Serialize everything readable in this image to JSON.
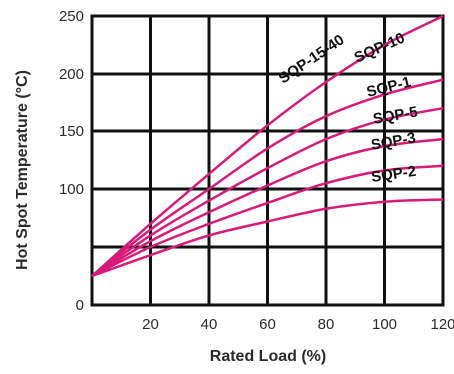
{
  "chart_data": {
    "type": "line",
    "xlabel": "Rated Load (%)",
    "ylabel": "Hot Spot Temperature (°C)",
    "x_ticks": [
      "20",
      "40",
      "60",
      "80",
      "100",
      "120"
    ],
    "y_ticks": [
      {
        "label": "0",
        "value": 0
      },
      {
        "label": "100",
        "value": 100
      },
      {
        "label": "150",
        "value": 150
      },
      {
        "label": "200",
        "value": 200
      },
      {
        "label": "250",
        "value": 250
      }
    ],
    "xlim": [
      0,
      120
    ],
    "ylim": [
      0,
      250
    ],
    "grid": true,
    "line_color": "#d81b7a",
    "series": [
      {
        "name": "SQP-15-40",
        "x": [
          0,
          20,
          40,
          60,
          80,
          100,
          120
        ],
        "y": [
          25,
          70,
          113,
          155,
          193,
          225,
          250
        ]
      },
      {
        "name": "SQP-10",
        "x": [
          0,
          20,
          40,
          60,
          80,
          100,
          120
        ],
        "y": [
          25,
          65,
          100,
          135,
          163,
          182,
          195
        ]
      },
      {
        "name": "SQP-1",
        "x": [
          0,
          20,
          40,
          60,
          80,
          100,
          120
        ],
        "y": [
          25,
          60,
          90,
          118,
          143,
          160,
          170
        ]
      },
      {
        "name": "SQP-5",
        "x": [
          0,
          20,
          40,
          60,
          80,
          100,
          120
        ],
        "y": [
          25,
          55,
          80,
          103,
          124,
          137,
          143
        ]
      },
      {
        "name": "SQP-3",
        "x": [
          0,
          20,
          40,
          60,
          80,
          100,
          120
        ],
        "y": [
          25,
          50,
          70,
          88,
          105,
          116,
          120
        ]
      },
      {
        "name": "SQP-2",
        "x": [
          0,
          20,
          40,
          60,
          80,
          100,
          120
        ],
        "y": [
          25,
          43,
          60,
          72,
          83,
          89,
          91
        ]
      }
    ]
  }
}
